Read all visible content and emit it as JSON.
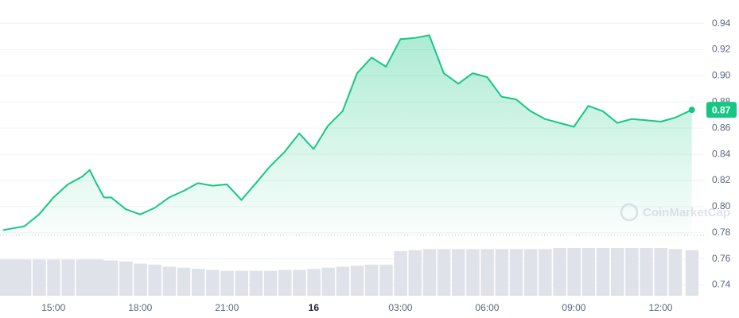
{
  "chart_data": {
    "type": "line",
    "color": "#16c784",
    "x": [
      13.25,
      13.5,
      13.75,
      14.0,
      14.5,
      15.0,
      15.5,
      16.0,
      16.25,
      16.5,
      16.75,
      17.0,
      17.5,
      18.0,
      18.5,
      19.0,
      19.5,
      20.0,
      20.5,
      21.0,
      21.5,
      22.0,
      22.5,
      23.0,
      23.5,
      24.0,
      24.5,
      25.0,
      25.5,
      26.0,
      26.5,
      27.0,
      27.5,
      28.0,
      28.5,
      29.0,
      29.5,
      30.0,
      30.5,
      31.0,
      31.5,
      32.0,
      32.5,
      33.0,
      33.5,
      34.0,
      34.5,
      35.0,
      35.5,
      36.0,
      36.5,
      37.08
    ],
    "values": [
      0.782,
      0.783,
      0.784,
      0.785,
      0.794,
      0.807,
      0.817,
      0.823,
      0.828,
      0.817,
      0.807,
      0.807,
      0.798,
      0.794,
      0.799,
      0.807,
      0.812,
      0.818,
      0.816,
      0.817,
      0.805,
      0.818,
      0.831,
      0.842,
      0.856,
      0.844,
      0.862,
      0.873,
      0.902,
      0.914,
      0.907,
      0.928,
      0.929,
      0.931,
      0.902,
      0.894,
      0.902,
      0.899,
      0.884,
      0.882,
      0.873,
      0.867,
      0.864,
      0.861,
      0.877,
      0.873,
      0.864,
      0.867,
      0.866,
      0.865,
      0.868,
      0.874
    ],
    "last_value_label": "0.87",
    "volume": {
      "color": "#dfe2e8",
      "values": [
        35,
        35,
        35,
        35,
        35,
        35,
        35,
        35,
        35,
        35,
        34,
        34,
        33,
        31,
        30,
        28,
        27,
        26,
        25,
        24,
        24,
        24,
        24,
        25,
        25,
        26,
        27,
        28,
        29,
        30,
        30,
        43,
        44,
        45,
        45,
        45,
        45,
        45,
        45,
        45,
        45,
        45,
        46,
        46,
        46,
        46,
        46,
        46,
        46,
        46,
        45,
        44
      ]
    },
    "baseline": 0.778,
    "xlim": [
      13.15,
      37.5
    ],
    "xticks": [
      {
        "value": 15,
        "label": "15:00"
      },
      {
        "value": 18,
        "label": "18:00"
      },
      {
        "value": 21,
        "label": "21:00"
      },
      {
        "value": 24,
        "label": "16"
      },
      {
        "value": 27,
        "label": "03:00"
      },
      {
        "value": 30,
        "label": "06:00"
      },
      {
        "value": 33,
        "label": "09:00"
      },
      {
        "value": 36,
        "label": "12:00"
      }
    ],
    "ylim": [
      0.73,
      0.958
    ],
    "yticks": [
      0.74,
      0.76,
      0.78,
      {
        "value": 0.8,
        "label": "0.80"
      },
      0.82,
      0.84,
      0.86,
      0.88,
      {
        "value": 0.9,
        "label": "0.90"
      },
      0.92,
      0.94
    ],
    "grid": true,
    "watermark": "CoinMarketCap"
  }
}
